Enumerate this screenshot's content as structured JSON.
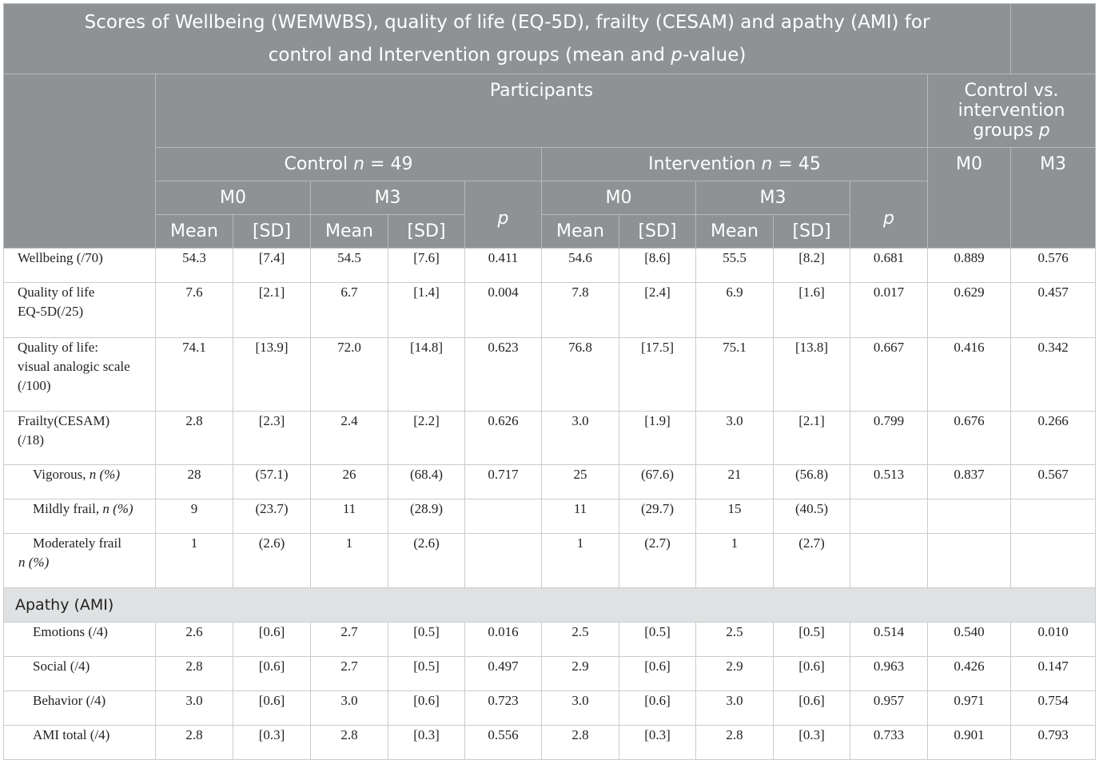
{
  "caption": {
    "line1": "Scores of Wellbeing (WEMWBS), quality of life (EQ-5D), frailty (CESAM) and apathy (AMI) for",
    "line2_pre": "control and Intervention groups (mean and ",
    "line2_p": "p",
    "line2_post": "-value)"
  },
  "headers": {
    "participants": "Participants",
    "control_vs_pre": "Control vs. intervention groups ",
    "control_vs_p": "p",
    "control_pre": "Control ",
    "control_n": "n",
    "control_post": " = 49",
    "intervention_pre": "Intervention ",
    "intervention_n": "n",
    "intervention_post": " = 45",
    "m0": "M0",
    "m3": "M3",
    "mean": "Mean",
    "sd": "[SD]",
    "p": "p"
  },
  "rows": [
    {
      "l1": "Wellbeing (/70)",
      "l2": "",
      "l3": "",
      "v": [
        "54.3",
        "[7.4]",
        "54.5",
        "[7.6]",
        "0.411",
        "54.6",
        "[8.6]",
        "55.5",
        "[8.2]",
        "0.681",
        "0.889",
        "0.576"
      ]
    },
    {
      "l1": "Quality of life",
      "l2": "EQ-5D(/25)",
      "l3": "",
      "v": [
        "7.6",
        "[2.1]",
        "6.7",
        "[1.4]",
        "0.004",
        "7.8",
        "[2.4]",
        "6.9",
        "[1.6]",
        "0.017",
        "0.629",
        "0.457"
      ]
    },
    {
      "l1": "Quality of life:",
      "l2": "visual analogic scale",
      "l3": "(/100)",
      "v": [
        "74.1",
        "[13.9]",
        "72.0",
        "[14.8]",
        "0.623",
        "76.8",
        "[17.5]",
        "75.1",
        "[13.8]",
        "0.667",
        "0.416",
        "0.342"
      ]
    },
    {
      "l1": "Frailty(CESAM)",
      "l2": "(/18)",
      "l3": "",
      "v": [
        "2.8",
        "[2.3]",
        "2.4",
        "[2.2]",
        "0.626",
        "3.0",
        "[1.9]",
        "3.0",
        "[2.1]",
        "0.799",
        "0.676",
        "0.266"
      ]
    }
  ],
  "frailty_sub": [
    {
      "label": "Vigorous, ",
      "it": "n (%)",
      "v": [
        "28",
        "(57.1)",
        "26",
        "(68.4)",
        "0.717",
        "25",
        "(67.6)",
        "21",
        "(56.8)",
        "0.513",
        "0.837",
        "0.567"
      ]
    },
    {
      "label": "Mildly frail, ",
      "it": "n (%)",
      "v": [
        "9",
        "(23.7)",
        "11",
        "(28.9)",
        "",
        "11",
        "(29.7)",
        "15",
        "(40.5)",
        "",
        "",
        ""
      ]
    },
    {
      "label": "Moderately frail",
      "it": "n (%)",
      "v": [
        "1",
        "(2.6)",
        "1",
        "(2.6)",
        "",
        "1",
        "(2.7)",
        "1",
        "(2.7)",
        "",
        "",
        ""
      ]
    }
  ],
  "section": "Apathy (AMI)",
  "ami_rows": [
    {
      "label": "Emotions (/4)",
      "v": [
        "2.6",
        "[0.6]",
        "2.7",
        "[0.5]",
        "0.016",
        "2.5",
        "[0.5]",
        "2.5",
        "[0.5]",
        "0.514",
        "0.540",
        "0.010"
      ]
    },
    {
      "label": "Social (/4)",
      "v": [
        "2.8",
        "[0.6]",
        "2.7",
        "[0.5]",
        "0.497",
        "2.9",
        "[0.6]",
        "2.9",
        "[0.6]",
        "0.963",
        "0.426",
        "0.147"
      ]
    },
    {
      "label": "Behavior (/4)",
      "v": [
        "3.0",
        "[0.6]",
        "3.0",
        "[0.6]",
        "0.723",
        "3.0",
        "[0.6]",
        "3.0",
        "[0.6]",
        "0.957",
        "0.971",
        "0.754"
      ]
    },
    {
      "label": "AMI total (/4)",
      "v": [
        "2.8",
        "[0.3]",
        "2.8",
        "[0.3]",
        "0.556",
        "2.8",
        "[0.3]",
        "2.8",
        "[0.3]",
        "0.733",
        "0.901",
        "0.793"
      ]
    }
  ]
}
